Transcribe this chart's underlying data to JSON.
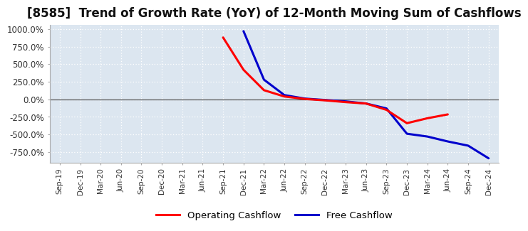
{
  "title": "[8585]  Trend of Growth Rate (YoY) of 12-Month Moving Sum of Cashflows",
  "title_fontsize": 12,
  "ylim": [
    -900,
    1060
  ],
  "yticks": [
    -750,
    -500,
    -250,
    0,
    250,
    500,
    750,
    1000
  ],
  "ytick_labels": [
    "-750.0%",
    "-500.0%",
    "-250.0%",
    "0.0%",
    "250.0%",
    "500.0%",
    "750.0%",
    "1000.0%"
  ],
  "background_color": "#ffffff",
  "plot_bg_color": "#dce6f0",
  "grid_color": "#ffffff",
  "operating_color": "#ff0000",
  "free_color": "#0000cc",
  "legend_labels": [
    "Operating Cashflow",
    "Free Cashflow"
  ],
  "x_labels": [
    "Sep-19",
    "Dec-19",
    "Mar-20",
    "Jun-20",
    "Sep-20",
    "Dec-20",
    "Mar-21",
    "Jun-21",
    "Sep-21",
    "Dec-21",
    "Mar-22",
    "Jun-22",
    "Sep-22",
    "Dec-22",
    "Mar-23",
    "Jun-23",
    "Sep-23",
    "Dec-23",
    "Mar-24",
    "Jun-24",
    "Sep-24",
    "Dec-24"
  ],
  "operating_y": [
    null,
    null,
    null,
    null,
    null,
    null,
    null,
    null,
    880,
    420,
    130,
    40,
    5,
    -15,
    -40,
    -60,
    -150,
    -340,
    -270,
    -215,
    null,
    null
  ],
  "free_y": [
    null,
    null,
    null,
    null,
    null,
    null,
    null,
    null,
    null,
    970,
    280,
    60,
    10,
    -10,
    -30,
    -60,
    -130,
    -490,
    -530,
    -600,
    -660,
    -840
  ]
}
